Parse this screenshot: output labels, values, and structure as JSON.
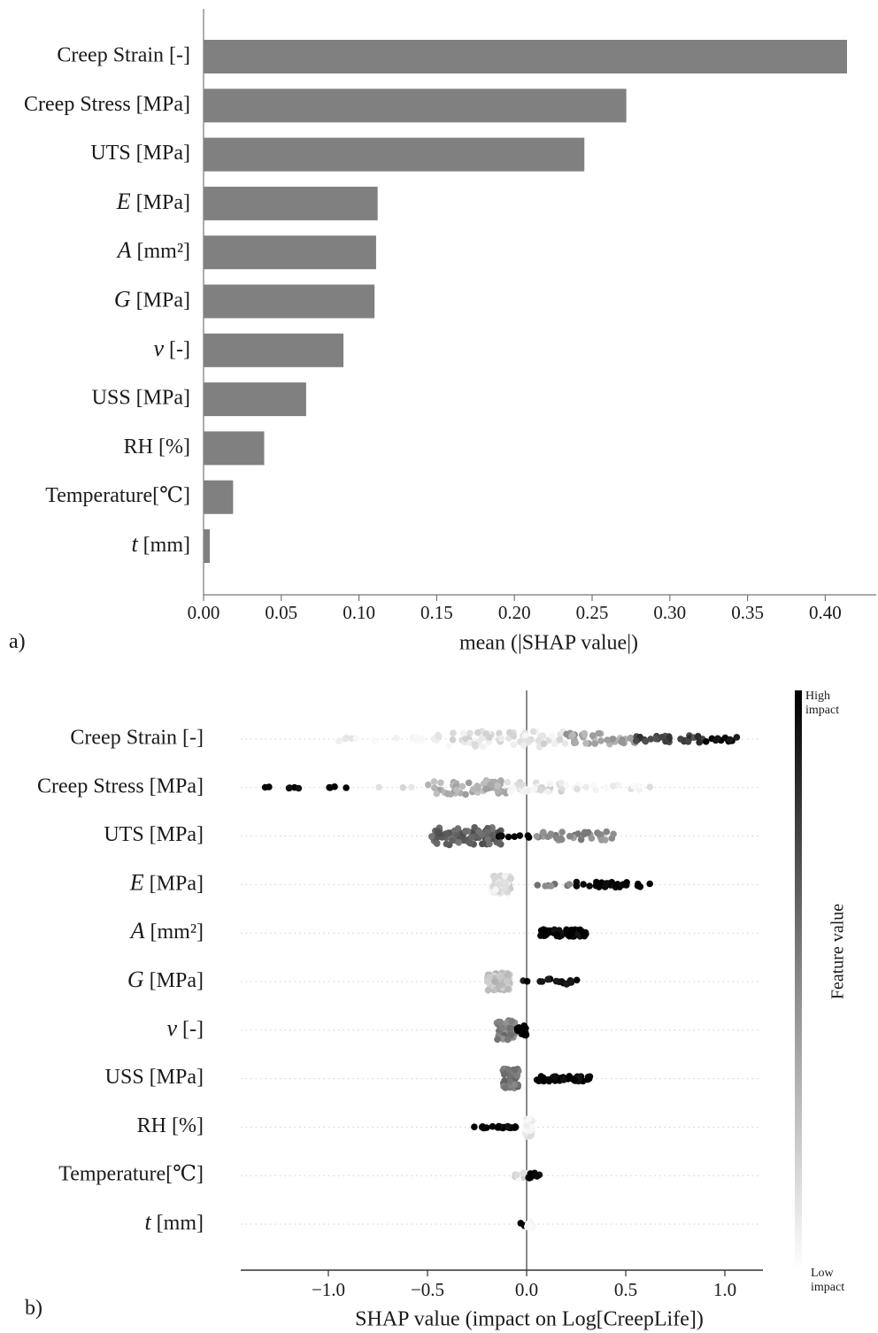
{
  "panel_labels": {
    "a": "a)",
    "b": "b)"
  },
  "chart_data": [
    {
      "type": "bar",
      "orientation": "horizontal",
      "xlabel": "mean (|SHAP value|)",
      "xlim": [
        0,
        0.42
      ],
      "xticks": [
        "0.00",
        "0.05",
        "0.10",
        "0.15",
        "0.20",
        "0.25",
        "0.30",
        "0.35",
        "0.40"
      ],
      "bar_color": "#808080",
      "features": [
        {
          "label": "Creep Strain [-]",
          "var": "",
          "unit": "",
          "value": 0.414
        },
        {
          "label": "Creep Stress [MPa]",
          "var": "",
          "unit": "",
          "value": 0.272
        },
        {
          "label": "UTS [MPa]",
          "var": "",
          "unit": "",
          "value": 0.245
        },
        {
          "label": "",
          "var": "E",
          "unit": "[MPa]",
          "value": 0.112
        },
        {
          "label": "",
          "var": "A",
          "unit": "[mm²]",
          "value": 0.111
        },
        {
          "label": "",
          "var": "G",
          "unit": "[MPa]",
          "value": 0.11
        },
        {
          "label": "",
          "var": "v",
          "unit": "[-]",
          "value": 0.09
        },
        {
          "label": "USS [MPa]",
          "var": "",
          "unit": "",
          "value": 0.066
        },
        {
          "label": "RH [%]",
          "var": "",
          "unit": "",
          "value": 0.039
        },
        {
          "label": "Temperature[℃]",
          "var": "",
          "unit": "",
          "value": 0.019
        },
        {
          "label": "",
          "var": "t",
          "unit": "[mm]",
          "value": 0.004
        }
      ]
    },
    {
      "type": "scatter",
      "subtype": "beeswarm",
      "xlabel": "SHAP value (impact on Log[CreepLife])",
      "xlim": [
        -1.45,
        1.2
      ],
      "xticks": [
        -1.0,
        -0.5,
        0.0,
        0.5,
        1.0
      ],
      "xtick_labels": [
        "−1.0",
        "−0.5",
        "0.0",
        "0.5",
        "1.0"
      ],
      "colorbar": {
        "label": "Feature value",
        "high": "High\nimpact",
        "low": "Low\nimpact"
      },
      "features": [
        {
          "label": "Creep Strain [-]",
          "var": "",
          "unit": "",
          "clusters": [
            {
              "from": -1.05,
              "to": -0.45,
              "level": 0.03,
              "count": 14,
              "spread": 3
            },
            {
              "from": -0.45,
              "to": 0.2,
              "level": 0.1,
              "count": 70,
              "spread": 9
            },
            {
              "from": 0.2,
              "to": 0.55,
              "level": 0.35,
              "count": 40,
              "spread": 7
            },
            {
              "from": 0.55,
              "to": 0.9,
              "level": 0.75,
              "count": 30,
              "spread": 4
            },
            {
              "from": 0.9,
              "to": 1.07,
              "level": 0.98,
              "count": 10,
              "spread": 3
            }
          ]
        },
        {
          "label": "Creep Stress [MPa]",
          "var": "",
          "unit": "",
          "clusters": [
            {
              "from": -1.33,
              "to": -0.9,
              "level": 1.0,
              "count": 10,
              "spread": 1
            },
            {
              "from": -0.75,
              "to": -0.55,
              "level": 0.15,
              "count": 3,
              "spread": 1
            },
            {
              "from": -0.5,
              "to": -0.1,
              "level": 0.3,
              "count": 50,
              "spread": 8
            },
            {
              "from": -0.1,
              "to": 0.2,
              "level": 0.12,
              "count": 30,
              "spread": 6
            },
            {
              "from": 0.2,
              "to": 0.7,
              "level": 0.05,
              "count": 15,
              "spread": 3
            }
          ]
        },
        {
          "label": "UTS [MPa]",
          "var": "",
          "unit": "",
          "clusters": [
            {
              "from": -0.48,
              "to": -0.12,
              "level": 0.62,
              "count": 90,
              "spread": 10
            },
            {
              "from": -0.15,
              "to": 0.05,
              "level": 1.0,
              "count": 8,
              "spread": 2
            },
            {
              "from": 0.05,
              "to": 0.45,
              "level": 0.45,
              "count": 35,
              "spread": 5
            }
          ]
        },
        {
          "label": "",
          "var": "E",
          "unit": "[MPa]",
          "clusters": [
            {
              "from": -0.18,
              "to": -0.08,
              "level": 0.12,
              "count": 60,
              "spread": 10
            },
            {
              "from": 0.05,
              "to": 0.25,
              "level": 0.5,
              "count": 8,
              "spread": 2
            },
            {
              "from": 0.25,
              "to": 0.64,
              "level": 1.0,
              "count": 30,
              "spread": 3
            }
          ]
        },
        {
          "label": "",
          "var": "A",
          "unit": "[mm²]",
          "clusters": [
            {
              "from": 0.06,
              "to": 0.3,
              "level": 1.0,
              "count": 60,
              "spread": 4
            }
          ]
        },
        {
          "label": "",
          "var": "G",
          "unit": "[MPa]",
          "clusters": [
            {
              "from": -0.2,
              "to": -0.08,
              "level": 0.22,
              "count": 60,
              "spread": 10
            },
            {
              "from": -0.05,
              "to": 0.26,
              "level": 0.95,
              "count": 16,
              "spread": 3
            }
          ]
        },
        {
          "label": "",
          "var": "v",
          "unit": "[-]",
          "clusters": [
            {
              "from": -0.15,
              "to": -0.05,
              "level": 0.5,
              "count": 55,
              "spread": 11
            },
            {
              "from": -0.05,
              "to": 0.01,
              "level": 1.0,
              "count": 14,
              "spread": 6
            }
          ]
        },
        {
          "label": "USS [MPa]",
          "var": "",
          "unit": "",
          "clusters": [
            {
              "from": -0.12,
              "to": -0.04,
              "level": 0.55,
              "count": 50,
              "spread": 11
            },
            {
              "from": 0.05,
              "to": 0.32,
              "level": 1.0,
              "count": 40,
              "spread": 3
            }
          ]
        },
        {
          "label": "RH [%]",
          "var": "",
          "unit": "",
          "clusters": [
            {
              "from": -0.28,
              "to": -0.05,
              "level": 1.0,
              "count": 25,
              "spread": 1
            },
            {
              "from": -0.01,
              "to": 0.03,
              "level": 0.06,
              "count": 45,
              "spread": 11
            }
          ]
        },
        {
          "label": "Temperature[℃]",
          "var": "",
          "unit": "",
          "clusters": [
            {
              "from": -0.06,
              "to": 0.0,
              "level": 0.1,
              "count": 20,
              "spread": 3
            },
            {
              "from": 0.0,
              "to": 0.07,
              "level": 1.0,
              "count": 12,
              "spread": 3
            }
          ]
        },
        {
          "label": "",
          "var": "t",
          "unit": "[mm]",
          "clusters": [
            {
              "from": -0.03,
              "to": 0.0,
              "level": 1.0,
              "count": 4,
              "spread": 2
            },
            {
              "from": 0.0,
              "to": 0.03,
              "level": 0.02,
              "count": 10,
              "spread": 4
            }
          ]
        }
      ]
    }
  ]
}
